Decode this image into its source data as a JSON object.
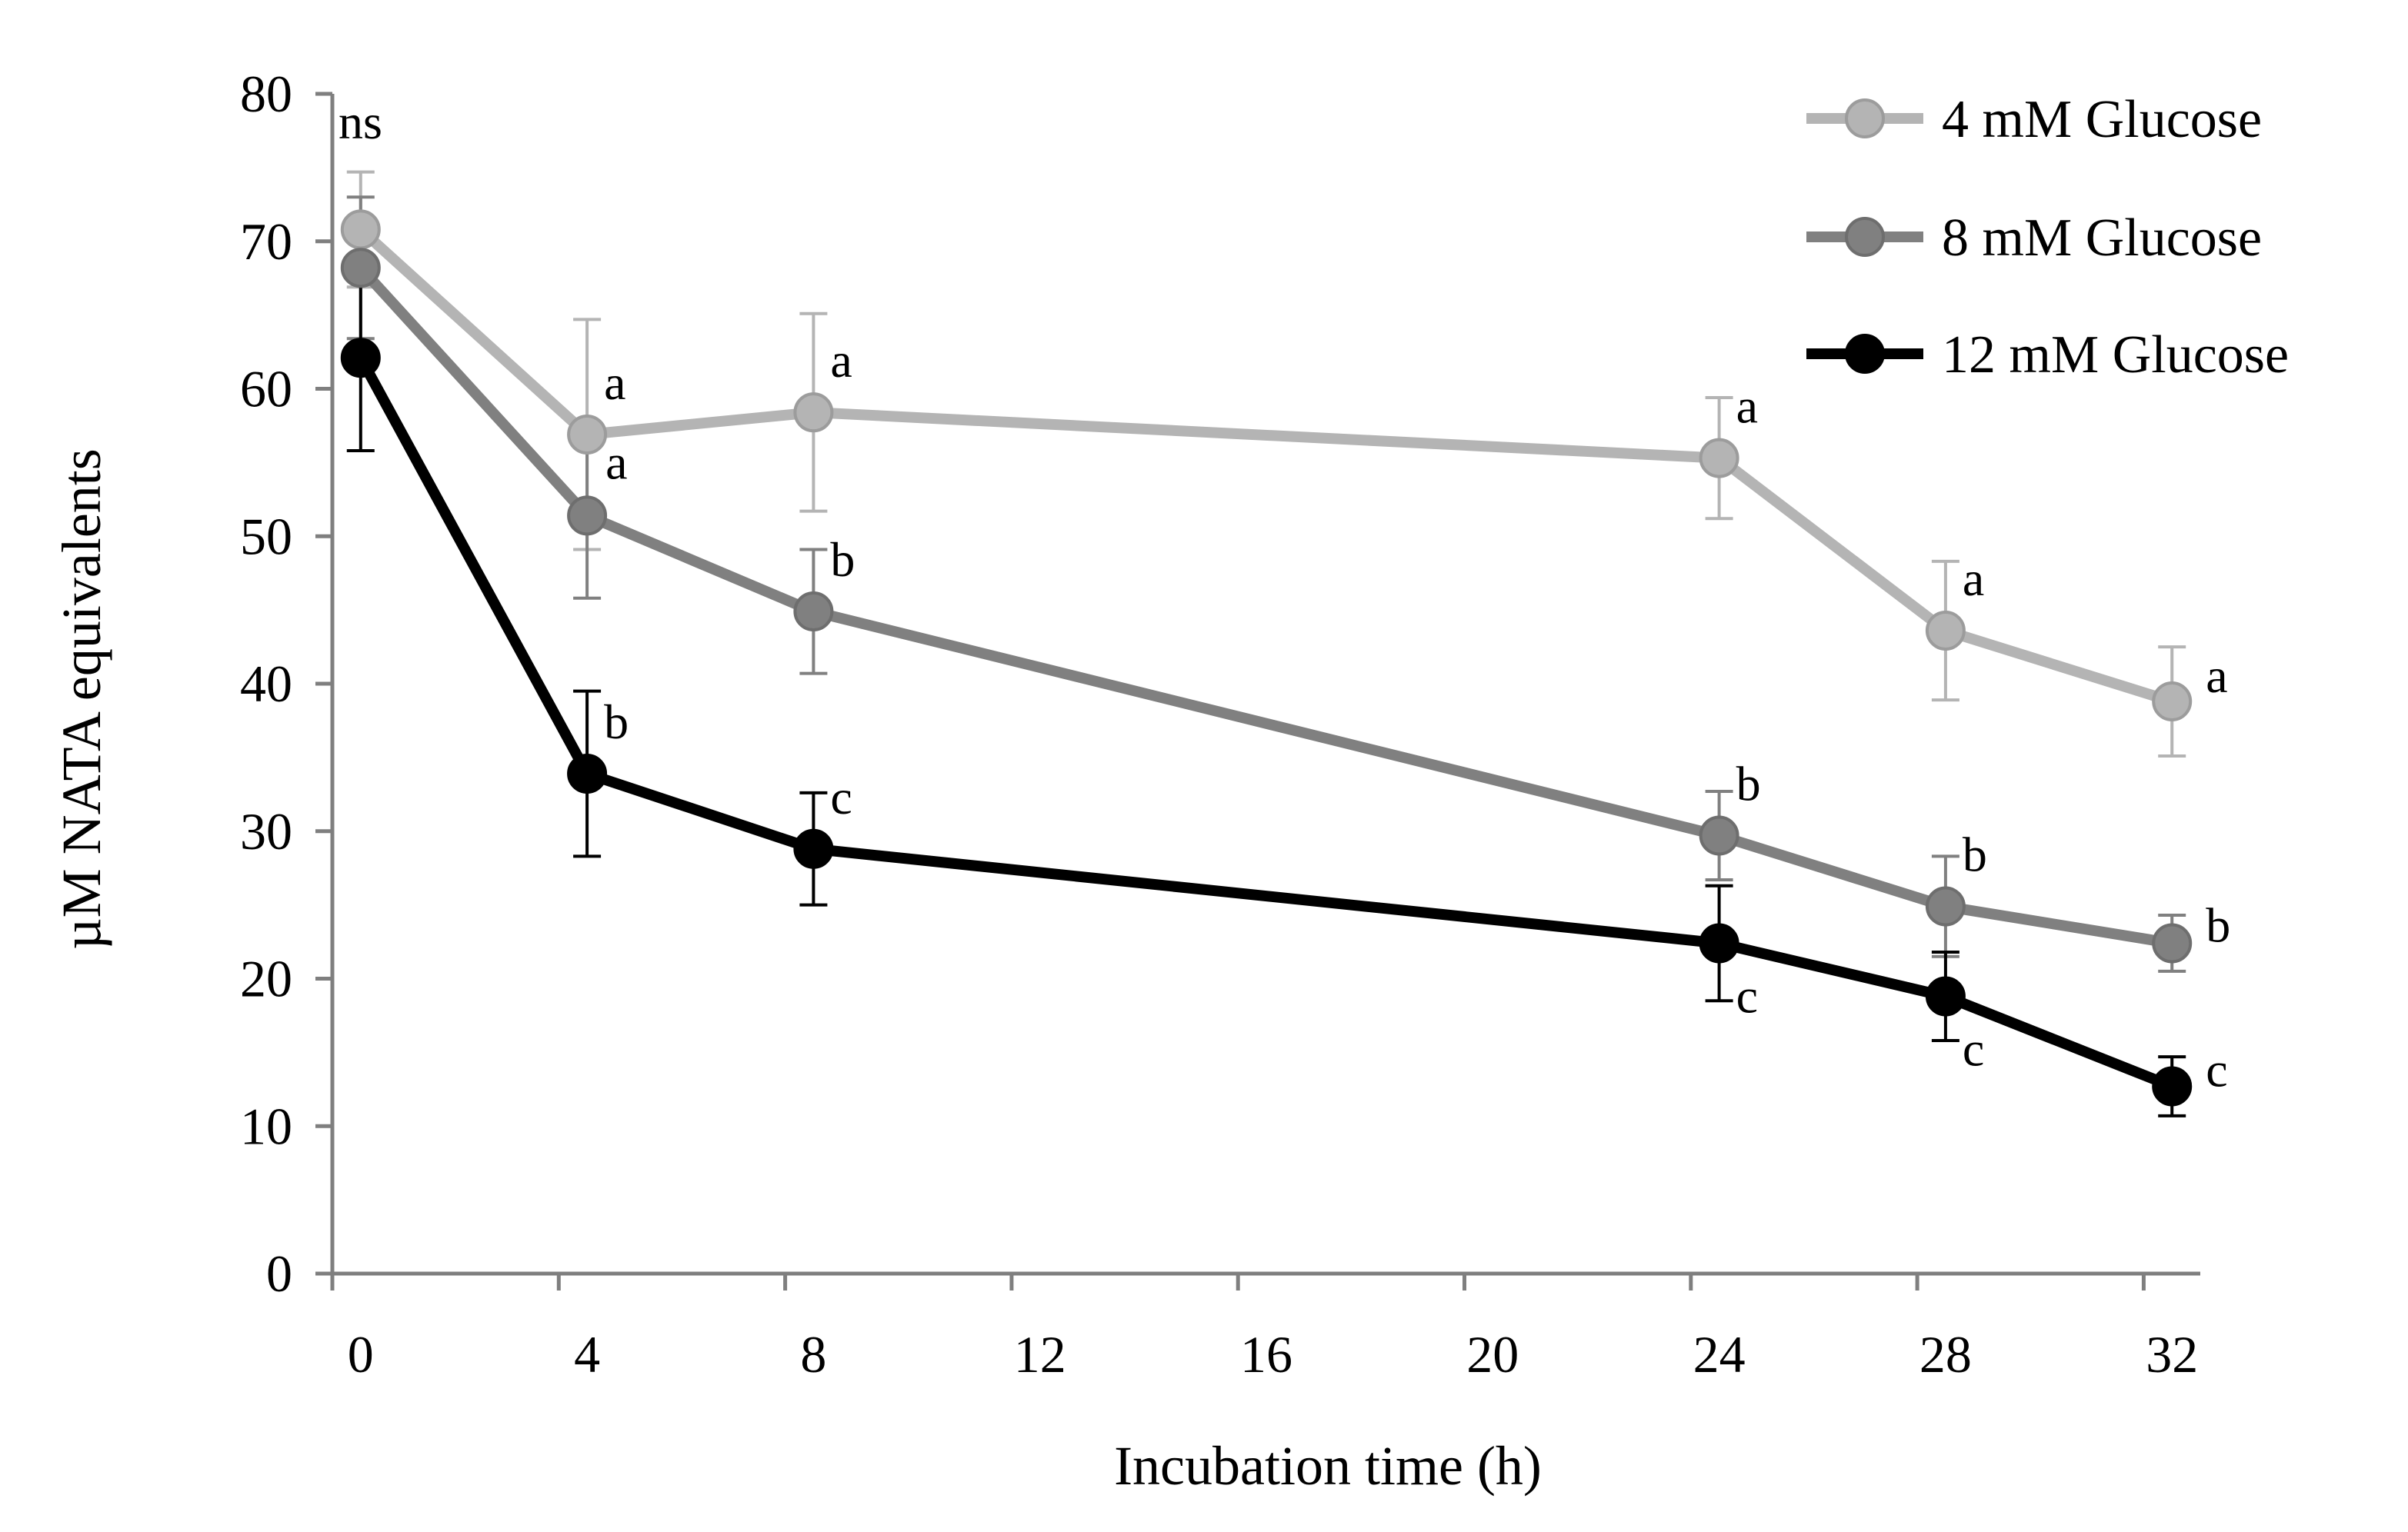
{
  "chart_data": {
    "type": "line",
    "title": "",
    "xlabel": "Incubation time (h)",
    "ylabel": "µM NATA equivalents",
    "xlim": [
      0,
      33
    ],
    "ylim": [
      0,
      80
    ],
    "xticks": [
      "0",
      "4",
      "8",
      "12",
      "16",
      "20",
      "24",
      "28",
      "32"
    ],
    "yticks": [
      "0",
      "10",
      "20",
      "30",
      "40",
      "50",
      "60",
      "70",
      "80"
    ],
    "legend_position": "top-right",
    "top_annotation": "ns",
    "x": [
      0.5,
      4.5,
      8.5,
      24.5,
      28.5,
      32.5
    ],
    "series": [
      {
        "name": "4 mM Glucose",
        "color": "#b4b4b4",
        "values": [
          70.8,
          56.9,
          58.4,
          55.3,
          43.6,
          38.8
        ],
        "errors": [
          3.9,
          7.8,
          6.7,
          4.1,
          4.7,
          3.7
        ],
        "letters": [
          "",
          "a",
          "a",
          "a",
          "a",
          "a"
        ]
      },
      {
        "name": "8 mM Glucose",
        "color": "#808080",
        "values": [
          68.2,
          51.4,
          44.9,
          29.7,
          24.9,
          22.4
        ],
        "errors": [
          4.8,
          5.6,
          4.2,
          3.0,
          3.4,
          1.9
        ],
        "letters": [
          "",
          "a",
          "b",
          "b",
          "b",
          "b"
        ]
      },
      {
        "name": "12 mM Glucose",
        "color": "#000000",
        "values": [
          62.1,
          33.9,
          28.8,
          22.4,
          18.8,
          12.7
        ],
        "errors": [
          6.3,
          5.6,
          3.8,
          3.9,
          3.0,
          2.0
        ],
        "letters": [
          "",
          "b",
          "c",
          "c",
          "c",
          "c"
        ]
      }
    ]
  }
}
